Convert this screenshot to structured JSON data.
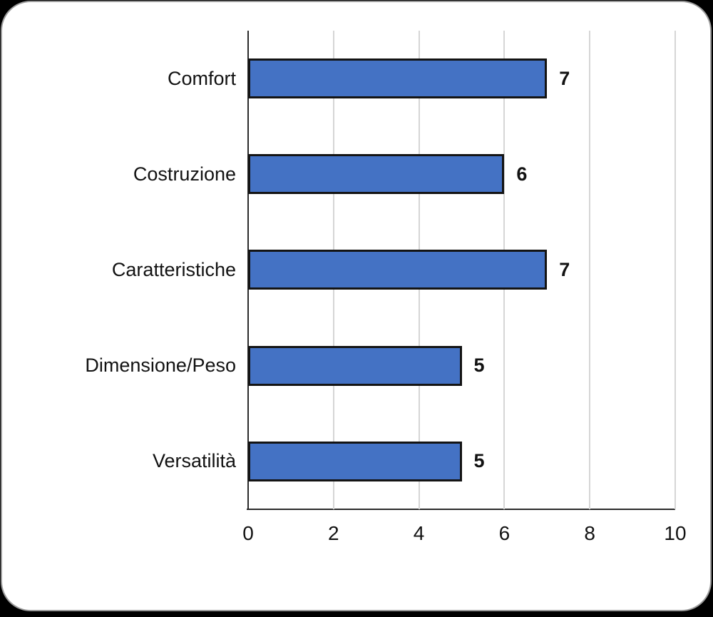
{
  "chart_data": {
    "type": "bar",
    "orientation": "horizontal",
    "title": "",
    "xlabel": "",
    "ylabel": "",
    "categories": [
      "Comfort",
      "Costruzione",
      "Caratteristiche",
      "Dimensione/Peso",
      "Versatilità"
    ],
    "values": [
      7,
      6,
      7,
      5,
      5
    ],
    "value_labels": [
      "7",
      "6",
      "7",
      "5",
      "5"
    ],
    "xlim": [
      0,
      10
    ],
    "xticks": [
      0,
      2,
      4,
      6,
      8,
      10
    ],
    "xtick_labels": [
      "0",
      "2",
      "4",
      "6",
      "8",
      "10"
    ],
    "grid": true,
    "legend": false,
    "colors": {
      "bar_fill": "#4472C4",
      "bar_border": "#141414",
      "gridline": "#D6D6D6",
      "axis_line": "#2b2b2b",
      "text": "#121212",
      "card_background": "#FFFFFF",
      "card_border": "#9B9B9B",
      "page_background": "#000000"
    }
  }
}
